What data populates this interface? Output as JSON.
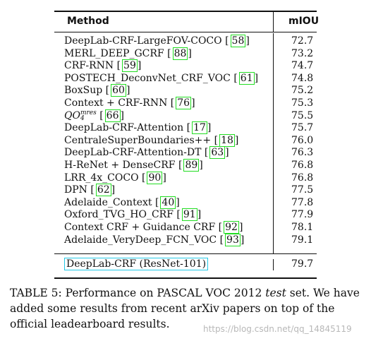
{
  "table": {
    "header": {
      "method": "Method",
      "miou": "mIOU"
    },
    "rows": [
      {
        "method": "DeepLab-CRF-LargeFOV-COCO",
        "cite": "58",
        "miou": "72.7"
      },
      {
        "method": "MERL_DEEP_GCRF",
        "cite": "88",
        "miou": "73.2"
      },
      {
        "method": "CRF-RNN",
        "cite": "59",
        "miou": "74.7"
      },
      {
        "method": "POSTECH_DeconvNet_CRF_VOC",
        "cite": "61",
        "miou": "74.8"
      },
      {
        "method": "BoxSup",
        "cite": "60",
        "miou": "75.2"
      },
      {
        "method": "Context + CRF-RNN",
        "cite": "76",
        "miou": "75.3"
      },
      {
        "method": "QO",
        "sup": "mres",
        "sub": "4",
        "cite": "66",
        "miou": "75.5"
      },
      {
        "method": "DeepLab-CRF-Attention",
        "cite": "17",
        "miou": "75.7"
      },
      {
        "method": "CentraleSuperBoundaries++",
        "cite": "18",
        "miou": "76.0"
      },
      {
        "method": "DeepLab-CRF-Attention-DT",
        "cite": "63",
        "miou": "76.3"
      },
      {
        "method": "H-ReNet + DenseCRF",
        "cite": "89",
        "miou": "76.8"
      },
      {
        "method": "LRR_4x_COCO",
        "cite": "90",
        "miou": "76.8"
      },
      {
        "method": "DPN",
        "cite": "62",
        "miou": "77.5"
      },
      {
        "method": "Adelaide_Context",
        "cite": "40",
        "miou": "77.8"
      },
      {
        "method": "Oxford_TVG_HO_CRF",
        "cite": "91",
        "miou": "77.9"
      },
      {
        "method": "Context CRF + Guidance CRF",
        "cite": "92",
        "miou": "78.1"
      },
      {
        "method": "Adelaide_VeryDeep_FCN_VOC",
        "cite": "93",
        "miou": "79.1"
      }
    ],
    "final": {
      "method": "DeepLab-CRF (ResNet-101)",
      "miou": "79.7"
    }
  },
  "caption": {
    "part1": "TABLE 5: Performance on PASCAL VOC 2012 ",
    "italic": "test",
    "part2": " set. We have added some results from recent arXiv papers on top of the official leadearboard results."
  },
  "watermark": "https://blog.csdn.net/qq_14845119"
}
